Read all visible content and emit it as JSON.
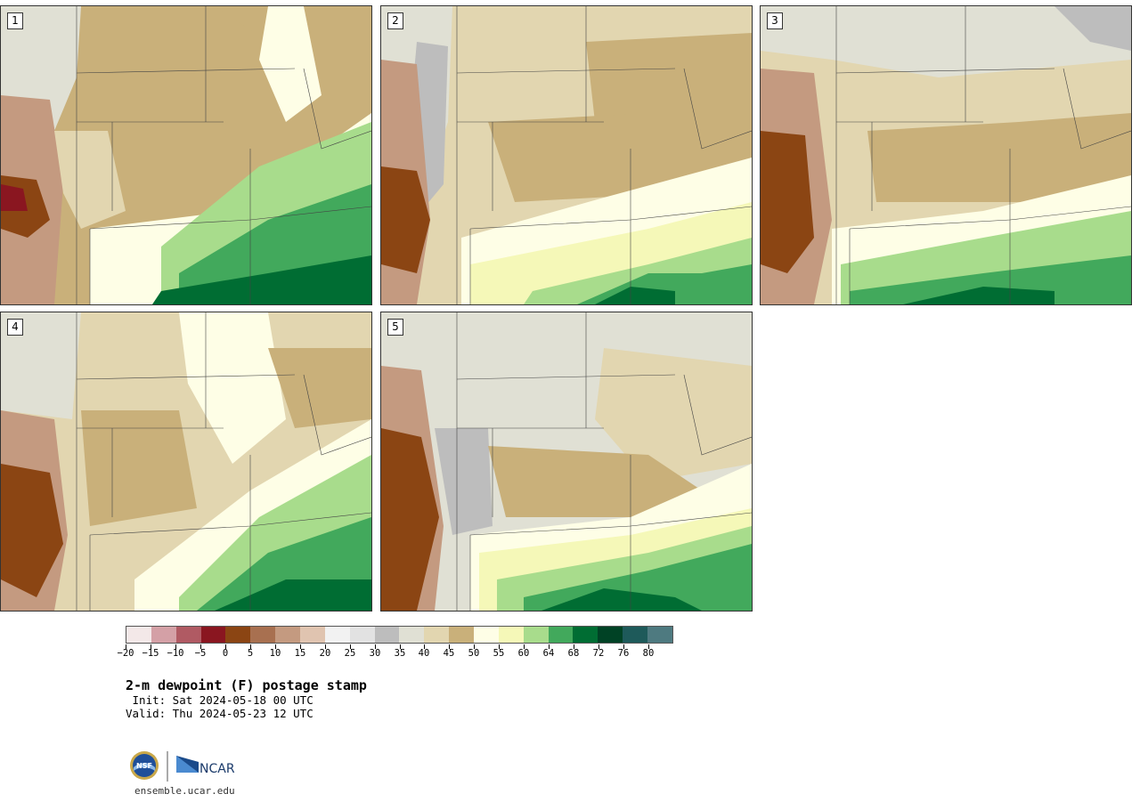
{
  "panels": [
    {
      "id": "1",
      "label": "1"
    },
    {
      "id": "2",
      "label": "2"
    },
    {
      "id": "3",
      "label": "3"
    },
    {
      "id": "4",
      "label": "4"
    },
    {
      "id": "5",
      "label": "5"
    }
  ],
  "colorbar": {
    "colors": [
      "#f3e8e8",
      "#d4a0a6",
      "#b05a63",
      "#8a1620",
      "#8b4513",
      "#a87050",
      "#c49a80",
      "#e0c4b0",
      "#f2f2f2",
      "#e2e2e2",
      "#bdbdbd",
      "#e0e0d4",
      "#e2d6b0",
      "#c9b07a",
      "#fefee6",
      "#f5f8b8",
      "#a8dc8c",
      "#42a95c",
      "#006d33",
      "#004225",
      "#1e5a5a",
      "#4e7a80"
    ],
    "tick_labels": [
      "−20",
      "−15",
      "−10",
      "−5",
      "0",
      "5",
      "10",
      "15",
      "20",
      "25",
      "30",
      "35",
      "40",
      "45",
      "50",
      "55",
      "60",
      "64",
      "68",
      "72",
      "76",
      "80"
    ]
  },
  "title": "2-m dewpoint (F) postage stamp",
  "init_line": " Init: Sat 2024-05-18 00 UTC",
  "valid_line": "Valid: Thu 2024-05-23 12 UTC",
  "logo_text": {
    "nsf": "NSF",
    "ncar": "NCAR"
  },
  "url": "ensemble.ucar.edu"
}
